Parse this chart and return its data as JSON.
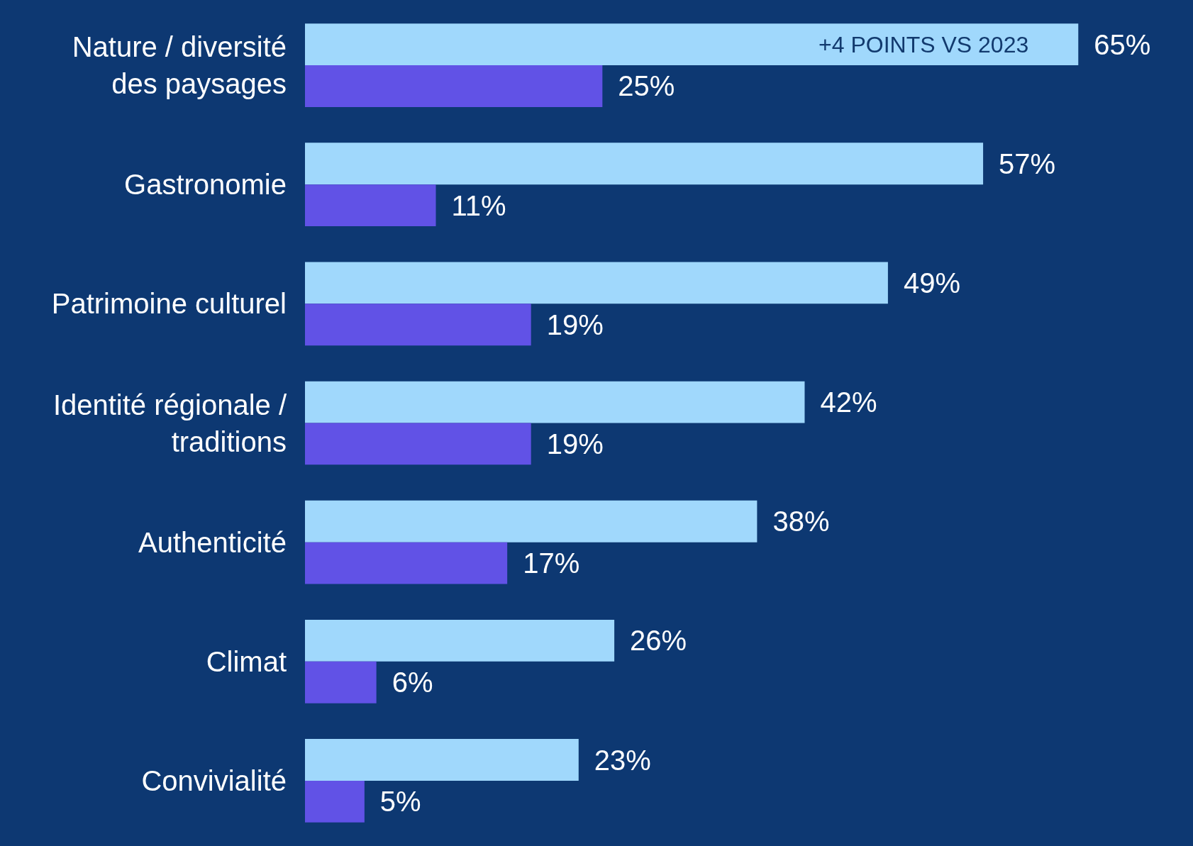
{
  "chart_data": {
    "type": "bar",
    "orientation": "horizontal",
    "categories": [
      "Nature / diversité\ndes paysages",
      "Gastronomie",
      "Patrimoine culturel",
      "Identité régionale /\ntraditions",
      "Authenticité",
      "Climat",
      "Convivialité"
    ],
    "series": [
      {
        "color": "#a0d8fc",
        "values": [
          65,
          57,
          49,
          42,
          38,
          26,
          23
        ],
        "value_labels": [
          "65%",
          "57%",
          "49%",
          "42%",
          "38%",
          "26%",
          "23%"
        ]
      },
      {
        "color": "#6152e6",
        "values": [
          25,
          11,
          19,
          19,
          17,
          6,
          5
        ],
        "value_labels": [
          "25%",
          "11%",
          "19%",
          "19%",
          "17%",
          "6%",
          "5%"
        ]
      }
    ],
    "annotations": [
      "+4 POINTS VS 2023"
    ]
  }
}
